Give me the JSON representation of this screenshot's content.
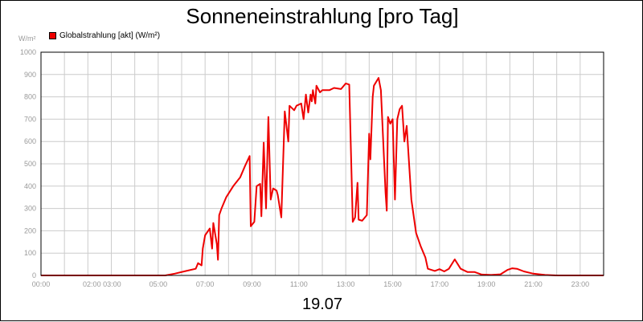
{
  "chart_data": {
    "type": "line",
    "title": "Sonneneinstrahlung [pro Tag]",
    "ylabel_unit": "W/m²",
    "date_label": "19.07",
    "xlim": [
      0,
      24
    ],
    "ylim": [
      0,
      1000
    ],
    "y_ticks": [
      0,
      100,
      200,
      300,
      400,
      500,
      600,
      700,
      800,
      900,
      1000
    ],
    "x_ticks": [
      {
        "x": 0,
        "label": "00:00"
      },
      {
        "x": 2.6,
        "label": "02:00 03:00"
      },
      {
        "x": 5,
        "label": "05:00"
      },
      {
        "x": 7,
        "label": "07:00"
      },
      {
        "x": 9,
        "label": "09:00"
      },
      {
        "x": 11,
        "label": "11:00"
      },
      {
        "x": 13,
        "label": "13:00"
      },
      {
        "x": 15,
        "label": "15:00"
      },
      {
        "x": 17,
        "label": "17:00"
      },
      {
        "x": 19,
        "label": "19:00"
      },
      {
        "x": 21,
        "label": "21:00"
      },
      {
        "x": 23,
        "label": "23:00"
      }
    ],
    "grid_x": [
      0,
      1,
      2,
      3,
      4,
      5,
      6,
      7,
      8,
      9,
      10,
      11,
      12,
      13,
      14,
      15,
      16,
      17,
      18,
      19,
      20,
      21,
      22,
      23,
      24
    ],
    "grid": true,
    "legend_position": "top-left",
    "colors": {
      "series": "#ee0000",
      "grid": "#cccccc",
      "axis": "#000000",
      "tick_text": "#999999"
    },
    "series": [
      {
        "name": "Globalstrahlung [akt] (W/m²)",
        "points": [
          [
            0,
            0
          ],
          [
            5.3,
            0
          ],
          [
            5.7,
            8
          ],
          [
            6.2,
            20
          ],
          [
            6.6,
            30
          ],
          [
            6.7,
            55
          ],
          [
            6.85,
            45
          ],
          [
            6.9,
            120
          ],
          [
            7.0,
            180
          ],
          [
            7.2,
            210
          ],
          [
            7.3,
            120
          ],
          [
            7.35,
            235
          ],
          [
            7.5,
            140
          ],
          [
            7.55,
            70
          ],
          [
            7.6,
            270
          ],
          [
            7.7,
            300
          ],
          [
            7.9,
            350
          ],
          [
            8.2,
            400
          ],
          [
            8.5,
            440
          ],
          [
            8.7,
            490
          ],
          [
            8.9,
            535
          ],
          [
            8.95,
            220
          ],
          [
            9.1,
            240
          ],
          [
            9.2,
            400
          ],
          [
            9.35,
            410
          ],
          [
            9.4,
            265
          ],
          [
            9.5,
            595
          ],
          [
            9.6,
            300
          ],
          [
            9.7,
            710
          ],
          [
            9.8,
            340
          ],
          [
            9.9,
            390
          ],
          [
            10.05,
            380
          ],
          [
            10.1,
            360
          ],
          [
            10.25,
            260
          ],
          [
            10.4,
            735
          ],
          [
            10.55,
            600
          ],
          [
            10.6,
            760
          ],
          [
            10.8,
            740
          ],
          [
            10.9,
            760
          ],
          [
            11.1,
            770
          ],
          [
            11.2,
            700
          ],
          [
            11.3,
            810
          ],
          [
            11.4,
            730
          ],
          [
            11.5,
            810
          ],
          [
            11.55,
            780
          ],
          [
            11.6,
            830
          ],
          [
            11.7,
            770
          ],
          [
            11.75,
            850
          ],
          [
            11.9,
            820
          ],
          [
            12.0,
            830
          ],
          [
            12.3,
            830
          ],
          [
            12.5,
            840
          ],
          [
            12.8,
            835
          ],
          [
            13.0,
            860
          ],
          [
            13.15,
            855
          ],
          [
            13.3,
            240
          ],
          [
            13.4,
            260
          ],
          [
            13.5,
            415
          ],
          [
            13.55,
            250
          ],
          [
            13.7,
            245
          ],
          [
            13.9,
            270
          ],
          [
            14.0,
            635
          ],
          [
            14.05,
            520
          ],
          [
            14.15,
            800
          ],
          [
            14.2,
            850
          ],
          [
            14.4,
            885
          ],
          [
            14.5,
            830
          ],
          [
            14.7,
            370
          ],
          [
            14.75,
            290
          ],
          [
            14.8,
            710
          ],
          [
            14.9,
            680
          ],
          [
            15.0,
            700
          ],
          [
            15.1,
            340
          ],
          [
            15.2,
            700
          ],
          [
            15.3,
            745
          ],
          [
            15.4,
            760
          ],
          [
            15.5,
            600
          ],
          [
            15.6,
            670
          ],
          [
            15.8,
            340
          ],
          [
            16.0,
            190
          ],
          [
            16.2,
            130
          ],
          [
            16.4,
            80
          ],
          [
            16.5,
            30
          ],
          [
            16.8,
            20
          ],
          [
            17.0,
            28
          ],
          [
            17.2,
            18
          ],
          [
            17.4,
            30
          ],
          [
            17.65,
            72
          ],
          [
            17.9,
            30
          ],
          [
            18.2,
            15
          ],
          [
            18.5,
            15
          ],
          [
            18.8,
            4
          ],
          [
            19.2,
            2
          ],
          [
            19.6,
            5
          ],
          [
            19.9,
            25
          ],
          [
            20.1,
            32
          ],
          [
            20.3,
            30
          ],
          [
            20.6,
            18
          ],
          [
            21.0,
            8
          ],
          [
            21.5,
            2
          ],
          [
            22.0,
            0
          ],
          [
            24,
            0
          ]
        ]
      }
    ]
  }
}
